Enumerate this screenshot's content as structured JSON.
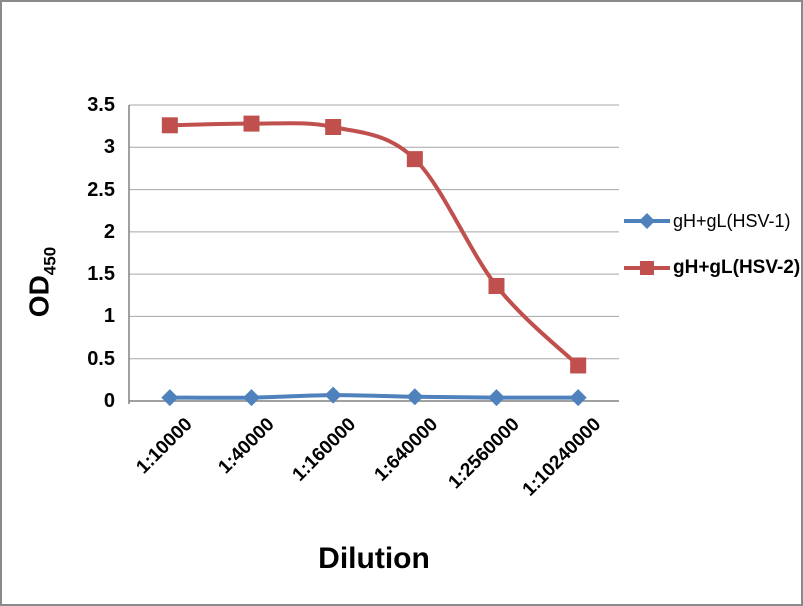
{
  "chart_data": {
    "type": "line",
    "title": "",
    "xlabel": "Dilution",
    "ylabel": {
      "text": "OD",
      "subscript": "450"
    },
    "categories": [
      "1:10000",
      "1:40000",
      "1:160000",
      "1:640000",
      "1:2560000",
      "1:10240000"
    ],
    "series": [
      {
        "name": "gH+gL(HSV-1)",
        "values": [
          0.04,
          0.04,
          0.07,
          0.05,
          0.04,
          0.04
        ],
        "color": "#4F81BD",
        "marker": "diamond",
        "legend_bold": false
      },
      {
        "name": "gH+gL(HSV-2)",
        "values": [
          3.26,
          3.28,
          3.24,
          2.86,
          1.36,
          0.42
        ],
        "color": "#C0504D",
        "marker": "square",
        "legend_bold": true
      }
    ],
    "ylim": [
      0,
      3.5
    ],
    "yticks": [
      {
        "value": 0,
        "label": "0"
      },
      {
        "value": 0.5,
        "label": "0.5"
      },
      {
        "value": 1,
        "label": "1"
      },
      {
        "value": 1.5,
        "label": "1.5"
      },
      {
        "value": 2,
        "label": "2"
      },
      {
        "value": 2.5,
        "label": "2.5"
      },
      {
        "value": 3,
        "label": "3"
      },
      {
        "value": 3.5,
        "label": "3.5"
      }
    ],
    "grid": "horizontal",
    "legend_position": "right",
    "colors": {
      "axis": "#808080",
      "gridline": "#A6A6A6",
      "text": "#000000",
      "border": "#8A8A8A",
      "background": "#FFFFFF"
    }
  }
}
